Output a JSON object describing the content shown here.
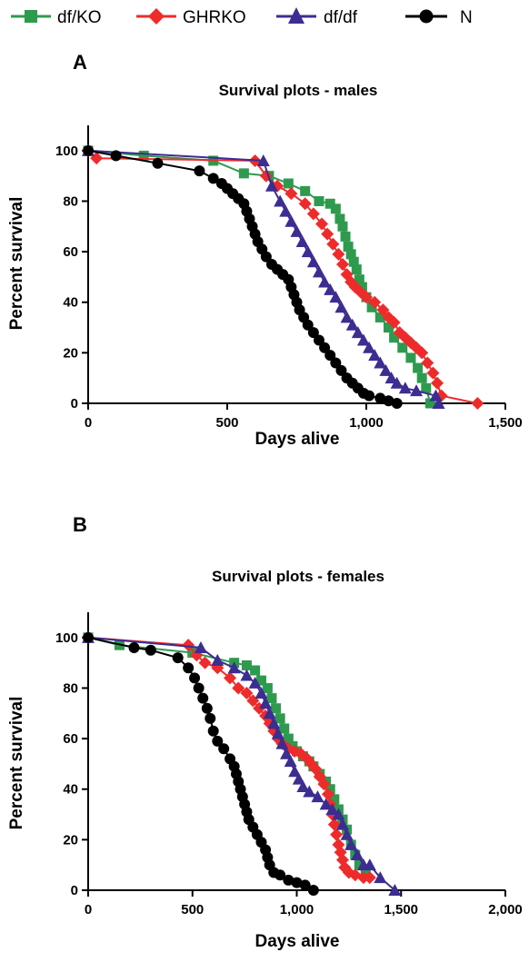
{
  "legend": [
    {
      "name": "df/KO",
      "color": "#2e9a4e",
      "marker": "square"
    },
    {
      "name": "GHRKO",
      "color": "#ee2b2b",
      "marker": "diamond"
    },
    {
      "name": "df/df",
      "color": "#3b2d91",
      "marker": "triangle"
    },
    {
      "name": "N",
      "color": "#000000",
      "marker": "circle"
    }
  ],
  "chart_data": [
    {
      "panel": "A",
      "type": "line",
      "title": "Survival plots - males",
      "xlabel": "Days alive",
      "ylabel": "Percent survival",
      "xlim": [
        0,
        1500
      ],
      "ylim": [
        0,
        110
      ],
      "xticks": [
        0,
        500,
        1000,
        1500
      ],
      "xtick_labels": [
        "0",
        "500",
        "1,000",
        "1,500"
      ],
      "yticks": [
        0,
        20,
        40,
        60,
        80,
        100
      ],
      "ytick_labels": [
        "0",
        "20",
        "40",
        "60",
        "80",
        "100"
      ],
      "series": [
        {
          "name": "df/KO",
          "color": "#2e9a4e",
          "marker": "square",
          "points": [
            [
              0,
              100
            ],
            [
              200,
              98
            ],
            [
              450,
              96
            ],
            [
              560,
              91
            ],
            [
              650,
              90
            ],
            [
              720,
              87
            ],
            [
              780,
              84
            ],
            [
              830,
              80
            ],
            [
              870,
              79
            ],
            [
              890,
              77
            ],
            [
              905,
              73
            ],
            [
              915,
              70
            ],
            [
              925,
              66
            ],
            [
              935,
              62
            ],
            [
              945,
              59
            ],
            [
              955,
              56
            ],
            [
              965,
              53
            ],
            [
              975,
              49
            ],
            [
              985,
              46
            ],
            [
              1000,
              42
            ],
            [
              1020,
              38
            ],
            [
              1050,
              34
            ],
            [
              1080,
              30
            ],
            [
              1100,
              26
            ],
            [
              1130,
              22
            ],
            [
              1160,
              18
            ],
            [
              1185,
              14
            ],
            [
              1200,
              10
            ],
            [
              1215,
              6
            ],
            [
              1230,
              0
            ]
          ]
        },
        {
          "name": "GHRKO",
          "color": "#ee2b2b",
          "marker": "diamond",
          "points": [
            [
              0,
              100
            ],
            [
              30,
              97
            ],
            [
              600,
              96
            ],
            [
              640,
              90
            ],
            [
              680,
              86
            ],
            [
              730,
              83
            ],
            [
              780,
              79
            ],
            [
              810,
              75
            ],
            [
              840,
              71
            ],
            [
              860,
              67
            ],
            [
              880,
              63
            ],
            [
              900,
              59
            ],
            [
              915,
              55
            ],
            [
              930,
              51
            ],
            [
              945,
              48
            ],
            [
              960,
              46
            ],
            [
              980,
              44
            ],
            [
              1000,
              42
            ],
            [
              1030,
              40
            ],
            [
              1060,
              37
            ],
            [
              1080,
              34
            ],
            [
              1100,
              32
            ],
            [
              1120,
              28
            ],
            [
              1140,
              26
            ],
            [
              1160,
              24
            ],
            [
              1180,
              22
            ],
            [
              1200,
              20
            ],
            [
              1220,
              16
            ],
            [
              1240,
              12
            ],
            [
              1255,
              8
            ],
            [
              1270,
              3
            ],
            [
              1400,
              0
            ]
          ]
        },
        {
          "name": "df/df",
          "color": "#3b2d91",
          "marker": "triangle",
          "points": [
            [
              0,
              100
            ],
            [
              630,
              96
            ],
            [
              660,
              86
            ],
            [
              690,
              80
            ],
            [
              710,
              76
            ],
            [
              730,
              72
            ],
            [
              750,
              68
            ],
            [
              770,
              64
            ],
            [
              790,
              60
            ],
            [
              810,
              56
            ],
            [
              830,
              52
            ],
            [
              850,
              48
            ],
            [
              870,
              45
            ],
            [
              890,
              42
            ],
            [
              910,
              38
            ],
            [
              930,
              34
            ],
            [
              950,
              31
            ],
            [
              970,
              28
            ],
            [
              990,
              25
            ],
            [
              1010,
              22
            ],
            [
              1030,
              19
            ],
            [
              1050,
              16
            ],
            [
              1070,
              13
            ],
            [
              1090,
              10
            ],
            [
              1110,
              8
            ],
            [
              1140,
              6
            ],
            [
              1180,
              5
            ],
            [
              1250,
              3
            ],
            [
              1260,
              0
            ]
          ]
        },
        {
          "name": "N",
          "color": "#000000",
          "marker": "circle",
          "points": [
            [
              0,
              100
            ],
            [
              100,
              98
            ],
            [
              250,
              95
            ],
            [
              400,
              92
            ],
            [
              450,
              89
            ],
            [
              480,
              87
            ],
            [
              500,
              85
            ],
            [
              520,
              83
            ],
            [
              540,
              81
            ],
            [
              560,
              79
            ],
            [
              570,
              76
            ],
            [
              580,
              73
            ],
            [
              590,
              70
            ],
            [
              600,
              67
            ],
            [
              610,
              64
            ],
            [
              625,
              61
            ],
            [
              640,
              58
            ],
            [
              660,
              55
            ],
            [
              680,
              53
            ],
            [
              700,
              51
            ],
            [
              720,
              49
            ],
            [
              730,
              46
            ],
            [
              740,
              43
            ],
            [
              750,
              40
            ],
            [
              760,
              37
            ],
            [
              775,
              34
            ],
            [
              790,
              31
            ],
            [
              810,
              28
            ],
            [
              830,
              25
            ],
            [
              850,
              22
            ],
            [
              870,
              19
            ],
            [
              890,
              16
            ],
            [
              910,
              13
            ],
            [
              930,
              10
            ],
            [
              950,
              8
            ],
            [
              970,
              6
            ],
            [
              990,
              4
            ],
            [
              1010,
              3
            ],
            [
              1050,
              2
            ],
            [
              1080,
              1
            ],
            [
              1110,
              0
            ]
          ]
        }
      ]
    },
    {
      "panel": "B",
      "type": "line",
      "title": "Survival plots - females",
      "xlabel": "Days alive",
      "ylabel": "Percent survival",
      "xlim": [
        0,
        2000
      ],
      "ylim": [
        0,
        110
      ],
      "xticks": [
        0,
        500,
        1000,
        1500,
        2000
      ],
      "xtick_labels": [
        "0",
        "500",
        "1,000",
        "1,500",
        "2,000"
      ],
      "yticks": [
        0,
        20,
        40,
        60,
        80,
        100
      ],
      "ytick_labels": [
        "0",
        "20",
        "40",
        "60",
        "80",
        "100"
      ],
      "series": [
        {
          "name": "df/KO",
          "color": "#2e9a4e",
          "marker": "square",
          "points": [
            [
              0,
              100
            ],
            [
              150,
              97
            ],
            [
              500,
              94
            ],
            [
              700,
              90
            ],
            [
              760,
              89
            ],
            [
              800,
              87
            ],
            [
              830,
              83
            ],
            [
              860,
              80
            ],
            [
              880,
              76
            ],
            [
              900,
              72
            ],
            [
              920,
              68
            ],
            [
              940,
              64
            ],
            [
              960,
              60
            ],
            [
              980,
              57
            ],
            [
              1000,
              55
            ],
            [
              1030,
              53
            ],
            [
              1060,
              51
            ],
            [
              1080,
              49
            ],
            [
              1110,
              46
            ],
            [
              1140,
              43
            ],
            [
              1160,
              40
            ],
            [
              1180,
              36
            ],
            [
              1200,
              32
            ],
            [
              1220,
              28
            ],
            [
              1240,
              24
            ],
            [
              1260,
              18
            ],
            [
              1280,
              14
            ],
            [
              1300,
              10
            ],
            [
              1330,
              6
            ]
          ]
        },
        {
          "name": "GHRKO",
          "color": "#ee2b2b",
          "marker": "diamond",
          "points": [
            [
              0,
              100
            ],
            [
              480,
              97
            ],
            [
              520,
              93
            ],
            [
              560,
              90
            ],
            [
              620,
              88
            ],
            [
              680,
              84
            ],
            [
              720,
              80
            ],
            [
              760,
              78
            ],
            [
              790,
              75
            ],
            [
              820,
              72
            ],
            [
              850,
              69
            ],
            [
              870,
              66
            ],
            [
              890,
              63
            ],
            [
              910,
              60
            ],
            [
              930,
              58
            ],
            [
              960,
              56
            ],
            [
              990,
              55
            ],
            [
              1020,
              54
            ],
            [
              1050,
              52
            ],
            [
              1070,
              50
            ],
            [
              1090,
              48
            ],
            [
              1110,
              45
            ],
            [
              1130,
              42
            ],
            [
              1150,
              38
            ],
            [
              1160,
              34
            ],
            [
              1170,
              30
            ],
            [
              1180,
              26
            ],
            [
              1190,
              22
            ],
            [
              1200,
              18
            ],
            [
              1210,
              15
            ],
            [
              1220,
              12
            ],
            [
              1230,
              9
            ],
            [
              1250,
              7
            ],
            [
              1280,
              6
            ],
            [
              1320,
              5
            ],
            [
              1350,
              5
            ]
          ]
        },
        {
          "name": "df/df",
          "color": "#3b2d91",
          "marker": "triangle",
          "points": [
            [
              0,
              100
            ],
            [
              540,
              96
            ],
            [
              620,
              91
            ],
            [
              700,
              88
            ],
            [
              760,
              85
            ],
            [
              800,
              82
            ],
            [
              830,
              78
            ],
            [
              850,
              74
            ],
            [
              870,
              70
            ],
            [
              890,
              66
            ],
            [
              910,
              62
            ],
            [
              930,
              58
            ],
            [
              950,
              54
            ],
            [
              970,
              51
            ],
            [
              990,
              47
            ],
            [
              1010,
              44
            ],
            [
              1030,
              41
            ],
            [
              1060,
              39
            ],
            [
              1100,
              37
            ],
            [
              1140,
              34
            ],
            [
              1170,
              32
            ],
            [
              1200,
              30
            ],
            [
              1220,
              26
            ],
            [
              1240,
              22
            ],
            [
              1260,
              18
            ],
            [
              1290,
              14
            ],
            [
              1320,
              10
            ],
            [
              1350,
              10
            ],
            [
              1400,
              5
            ],
            [
              1470,
              0
            ]
          ]
        },
        {
          "name": "N",
          "color": "#000000",
          "marker": "circle",
          "points": [
            [
              0,
              100
            ],
            [
              220,
              96
            ],
            [
              300,
              95
            ],
            [
              430,
              92
            ],
            [
              480,
              88
            ],
            [
              510,
              84
            ],
            [
              530,
              80
            ],
            [
              550,
              76
            ],
            [
              570,
              72
            ],
            [
              585,
              68
            ],
            [
              600,
              63
            ],
            [
              620,
              59
            ],
            [
              650,
              56
            ],
            [
              680,
              52
            ],
            [
              700,
              49
            ],
            [
              710,
              46
            ],
            [
              720,
              43
            ],
            [
              730,
              40
            ],
            [
              740,
              37
            ],
            [
              750,
              34
            ],
            [
              760,
              31
            ],
            [
              770,
              28
            ],
            [
              790,
              25
            ],
            [
              810,
              22
            ],
            [
              830,
              19
            ],
            [
              850,
              16
            ],
            [
              860,
              13
            ],
            [
              870,
              10
            ],
            [
              890,
              7
            ],
            [
              920,
              6
            ],
            [
              960,
              4
            ],
            [
              1000,
              3
            ],
            [
              1040,
              2
            ],
            [
              1080,
              0
            ]
          ]
        }
      ]
    }
  ]
}
